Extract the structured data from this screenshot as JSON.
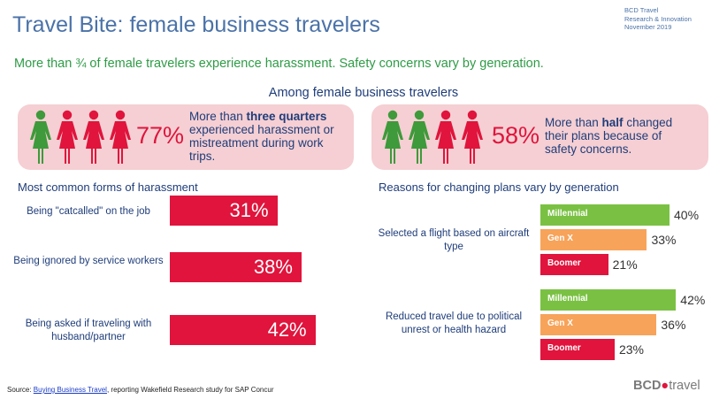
{
  "header": {
    "title": "Travel Bite: female business travelers",
    "meta": [
      "BCD Travel",
      "Research & Innovation",
      "November 2019"
    ],
    "subtitle": "More than ¾ of female travelers experience harassment. Safety concerns vary by generation.",
    "among": "Among female business travelers"
  },
  "stats": [
    {
      "percent": "77%",
      "figures": [
        "green",
        "red",
        "red",
        "red"
      ],
      "text_pre": "More than ",
      "text_bold": "three quarters",
      "text_post": " experienced harassment or mistreatment during work trips."
    },
    {
      "percent": "58%",
      "figures": [
        "green",
        "green",
        "red",
        "red"
      ],
      "text_pre": "More than ",
      "text_bold": "half",
      "text_post": " changed their plans because of safety concerns."
    }
  ],
  "colors": {
    "red": "#e0143c",
    "green": "#3e9a3a",
    "millennial": "#7ac143",
    "genx": "#f7a35a",
    "boomer": "#e0143c",
    "card": "#f5cfd3",
    "title": "#4a72a8",
    "subtitle": "#2e9b46"
  },
  "chart_data": [
    {
      "type": "bar",
      "orientation": "horizontal",
      "title": "Most common forms of harassment",
      "categories": [
        "Being \"catcalled\" on the job",
        "Being ignored by service workers",
        "Being asked if traveling with husband/partner"
      ],
      "values": [
        31,
        38,
        42
      ],
      "value_labels": [
        "31%",
        "38%",
        "42%"
      ],
      "xlim": [
        0,
        50
      ]
    },
    {
      "type": "bar",
      "orientation": "horizontal",
      "title": "Reasons for changing plans vary by generation",
      "categories": [
        "Selected a flight based on aircraft type",
        "Reduced travel due to political unrest or health hazard"
      ],
      "series": [
        {
          "name": "Millennial",
          "values": [
            40,
            42
          ],
          "labels": [
            "40%",
            "42%"
          ]
        },
        {
          "name": "Gen X",
          "values": [
            33,
            36
          ],
          "labels": [
            "33%",
            "36%"
          ]
        },
        {
          "name": "Boomer",
          "values": [
            21,
            23
          ],
          "labels": [
            "21%",
            "23%"
          ]
        }
      ],
      "xlim": [
        0,
        50
      ]
    }
  ],
  "footer": {
    "source_prefix": "Source: ",
    "source_link": "Buying Business Travel",
    "source_suffix": ", reporting Wakefield Research study for SAP Concur",
    "logo_main": "BCD",
    "logo_suffix": "travel"
  }
}
